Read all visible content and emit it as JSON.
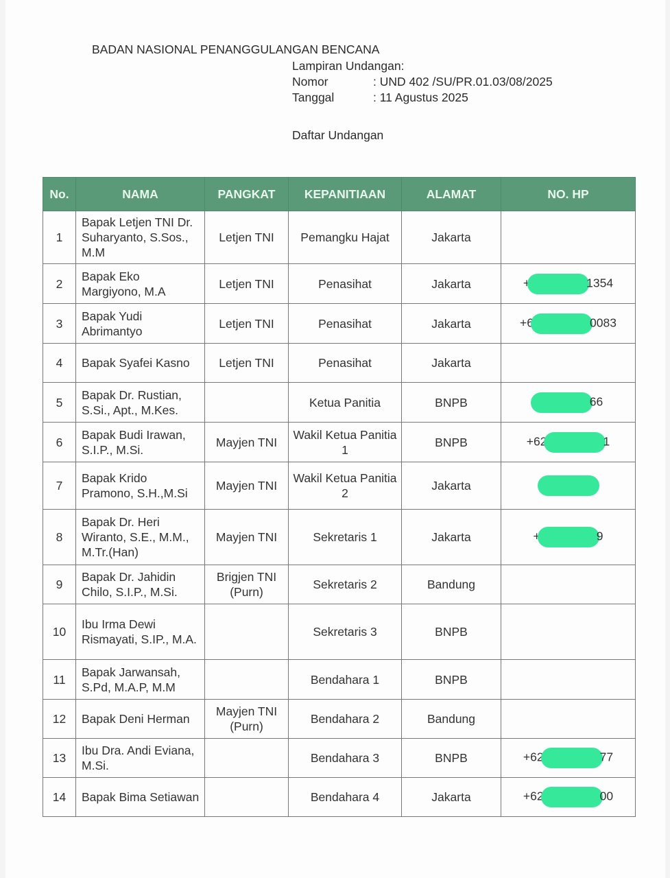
{
  "header": {
    "organization": "BADAN NASIONAL PENANGGULANGAN BENCANA",
    "attachment_label": "Lampiran Undangan:",
    "nomor_label": "Nomor",
    "nomor_value": ": UND 402 /SU/PR.01.03/08/2025",
    "tanggal_label": "Tanggal",
    "tanggal_value": ":  11  Agustus 2025",
    "list_title": "Daftar Undangan"
  },
  "colors": {
    "header_bg": "#5a9a78",
    "redaction": "#35e89a"
  },
  "table": {
    "columns": [
      "No.",
      "NAMA",
      "PANGKAT",
      "KEPANITIAAN",
      "ALAMAT",
      "NO. HP"
    ],
    "rows": [
      {
        "no": "1",
        "nama": "Bapak Letjen TNI Dr. Suharyanto, S.Sos., M.M",
        "pangkat": "Letjen TNI",
        "kepanitiaan": "Pemangku Hajat",
        "alamat": "Jakarta",
        "hp_prefix": "",
        "hp_suffix": "",
        "redacted": false
      },
      {
        "no": "2",
        "nama": "Bapak Eko Margiyono, M.A",
        "pangkat": "Letjen TNI",
        "kepanitiaan": "Penasihat",
        "alamat": "Jakarta",
        "hp_prefix": "+",
        "hp_suffix": "1354",
        "redacted": true
      },
      {
        "no": "3",
        "nama": "Bapak Yudi Abrimantyo",
        "pangkat": "Letjen TNI",
        "kepanitiaan": "Penasihat",
        "alamat": "Jakarta",
        "hp_prefix": "+6",
        "hp_suffix": "0083",
        "redacted": true
      },
      {
        "no": "4",
        "nama": "Bapak Syafei Kasno",
        "pangkat": "Letjen TNI",
        "kepanitiaan": "Penasihat",
        "alamat": "Jakarta",
        "hp_prefix": "",
        "hp_suffix": "",
        "redacted": false
      },
      {
        "no": "5",
        "nama": "Bapak Dr. Rustian, S.Si., Apt., M.Kes.",
        "pangkat": "",
        "kepanitiaan": "Ketua Panitia",
        "alamat": "BNPB",
        "hp_prefix": "",
        "hp_suffix": "66",
        "redacted": true
      },
      {
        "no": "6",
        "nama": "Bapak Budi Irawan, S.I.P., M.Si.",
        "pangkat": "Mayjen TNI",
        "kepanitiaan": "Wakil Ketua Panitia 1",
        "alamat": "BNPB",
        "hp_prefix": "+62",
        "hp_suffix": "1",
        "redacted": true
      },
      {
        "no": "7",
        "nama": "Bapak Krido Pramono, S.H.,M.Si",
        "pangkat": "Mayjen TNI",
        "kepanitiaan": "Wakil Ketua Panitia 2",
        "alamat": "Jakarta",
        "hp_prefix": "",
        "hp_suffix": "",
        "redacted": true
      },
      {
        "no": "8",
        "nama": "Bapak Dr. Heri Wiranto, S.E., M.M., M.Tr.(Han)",
        "pangkat": "Mayjen TNI",
        "kepanitiaan": "Sekretaris 1",
        "alamat": "Jakarta",
        "hp_prefix": "+",
        "hp_suffix": "9",
        "redacted": true
      },
      {
        "no": "9",
        "nama": "Bapak Dr. Jahidin Chilo, S.I.P., M.Si.",
        "pangkat": "Brigjen TNI (Purn)",
        "kepanitiaan": "Sekretaris 2",
        "alamat": "Bandung",
        "hp_prefix": "",
        "hp_suffix": "",
        "redacted": false
      },
      {
        "no": "10",
        "nama": "Ibu Irma Dewi Rismayati, S.IP., M.A.",
        "pangkat": "",
        "kepanitiaan": "Sekretaris 3",
        "alamat": "BNPB",
        "hp_prefix": "",
        "hp_suffix": "",
        "redacted": false
      },
      {
        "no": "11",
        "nama": "Bapak Jarwansah, S.Pd, M.A.P, M.M",
        "pangkat": "",
        "kepanitiaan": "Bendahara 1",
        "alamat": "BNPB",
        "hp_prefix": "",
        "hp_suffix": "",
        "redacted": false
      },
      {
        "no": "12",
        "nama": "Bapak Deni Herman",
        "pangkat": "Mayjen TNI (Purn)",
        "kepanitiaan": "Bendahara 2",
        "alamat": "Bandung",
        "hp_prefix": "",
        "hp_suffix": "",
        "redacted": false
      },
      {
        "no": "13",
        "nama": "Ibu Dra. Andi Eviana, M.Si.",
        "pangkat": "",
        "kepanitiaan": "Bendahara 3",
        "alamat": "BNPB",
        "hp_prefix": "+62",
        "hp_suffix": "77",
        "redacted": true
      },
      {
        "no": "14",
        "nama": "Bapak Bima Setiawan",
        "pangkat": "",
        "kepanitiaan": "Bendahara 4",
        "alamat": "Jakarta",
        "hp_prefix": "+62",
        "hp_suffix": "00",
        "redacted": true
      }
    ]
  }
}
